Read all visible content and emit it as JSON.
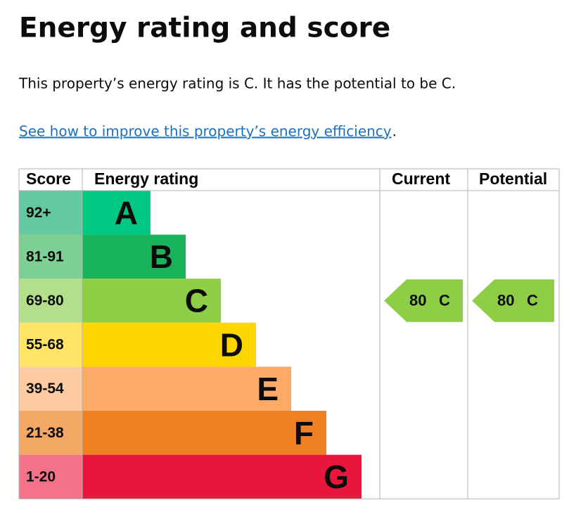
{
  "header": {
    "title": "Energy rating and score"
  },
  "intro": "This property’s energy rating is C. It has the potential to be C.",
  "link": {
    "text": "See how to improve this property’s energy efficiency",
    "suffix": "."
  },
  "table": {
    "columns": [
      "Score",
      "Energy rating",
      "Current",
      "Potential"
    ],
    "bands": [
      {
        "score": "92+",
        "letter": "A",
        "color": "#00c781",
        "score_color": "#64c9a1"
      },
      {
        "score": "81-91",
        "letter": "B",
        "color": "#19b459",
        "score_color": "#7dcf93"
      },
      {
        "score": "69-80",
        "letter": "C",
        "color": "#8dce46",
        "score_color": "#b4df8a"
      },
      {
        "score": "55-68",
        "letter": "D",
        "color": "#ffd500",
        "score_color": "#ffe466"
      },
      {
        "score": "39-54",
        "letter": "E",
        "color": "#fcaa65",
        "score_color": "#fdcba2"
      },
      {
        "score": "21-38",
        "letter": "F",
        "color": "#ef8023",
        "score_color": "#f4a865"
      },
      {
        "score": "1-20",
        "letter": "G",
        "color": "#e9153b",
        "score_color": "#f27389"
      }
    ],
    "current": {
      "score": 80,
      "rating": "C"
    },
    "potential": {
      "score": 80,
      "rating": "C"
    }
  }
}
